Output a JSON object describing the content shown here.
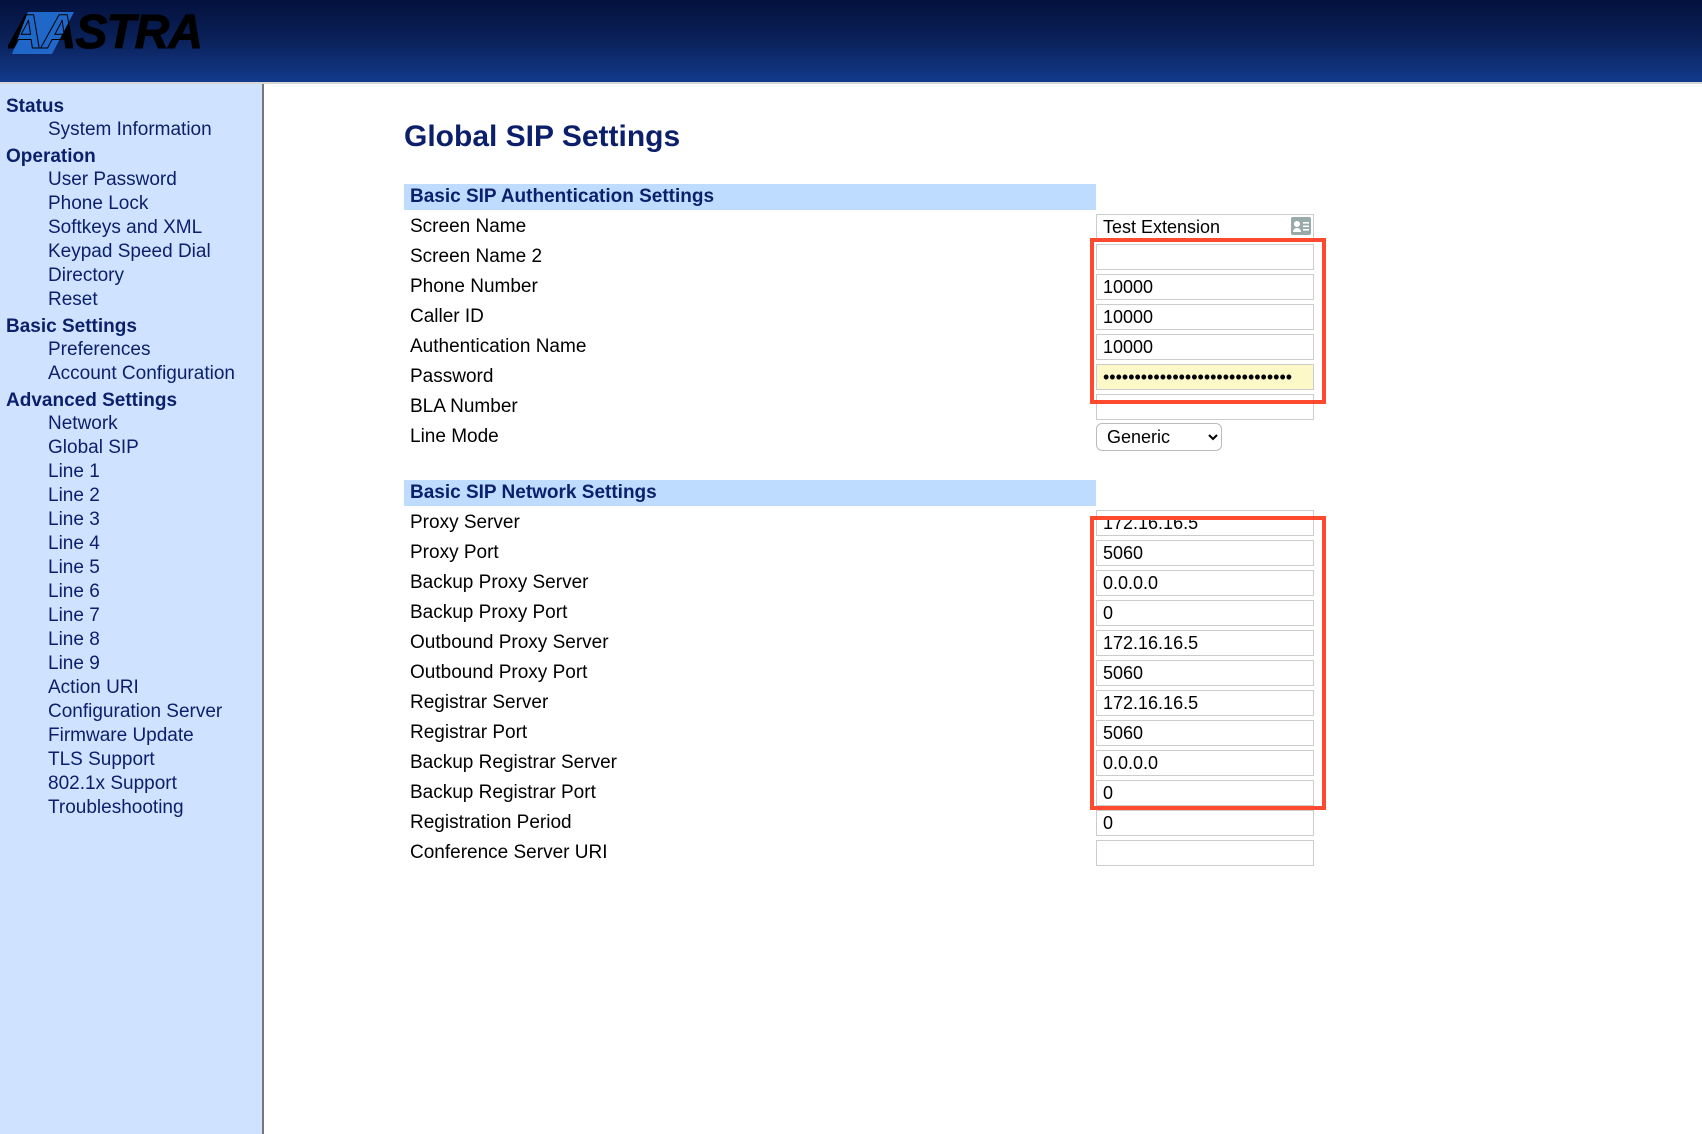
{
  "brand": "AASTRA",
  "colors": {
    "accent": "#0b1f6b",
    "sidebar_bg": "#cfe2ff",
    "section_bg": "#bedcff",
    "highlight": "#ff4a2f",
    "password_bg": "#fcf8c7"
  },
  "sidebar": {
    "sections": [
      {
        "title": "Status",
        "items": [
          "System Information"
        ]
      },
      {
        "title": "Operation",
        "items": [
          "User Password",
          "Phone Lock",
          "Softkeys and XML",
          "Keypad Speed Dial",
          "Directory",
          "Reset"
        ]
      },
      {
        "title": "Basic Settings",
        "items": [
          "Preferences",
          "Account Configuration"
        ]
      },
      {
        "title": "Advanced Settings",
        "items": [
          "Network",
          "Global SIP",
          "Line 1",
          "Line 2",
          "Line 3",
          "Line 4",
          "Line 5",
          "Line 6",
          "Line 7",
          "Line 8",
          "Line 9",
          "Action URI",
          "Configuration Server",
          "Firmware Update",
          "TLS Support",
          "802.1x Support",
          "Troubleshooting"
        ]
      }
    ]
  },
  "page": {
    "title": "Global SIP Settings",
    "groups": [
      {
        "header": "Basic SIP Authentication Settings",
        "rows": [
          {
            "label": "Screen Name",
            "value": "Test Extension",
            "type": "text",
            "has_contact_icon": true
          },
          {
            "label": "Screen Name 2",
            "value": "",
            "type": "text"
          },
          {
            "label": "Phone Number",
            "value": "10000",
            "type": "text"
          },
          {
            "label": "Caller ID",
            "value": "10000",
            "type": "text"
          },
          {
            "label": "Authentication Name",
            "value": "10000",
            "type": "text"
          },
          {
            "label": "Password",
            "value": "••••••••••••••••••••••••••••••",
            "type": "password"
          },
          {
            "label": "BLA Number",
            "value": "",
            "type": "text"
          },
          {
            "label": "Line Mode",
            "value": "Generic",
            "type": "select"
          }
        ],
        "highlight": {
          "from_row": 1,
          "to_row": 5
        }
      },
      {
        "header": "Basic SIP Network Settings",
        "rows": [
          {
            "label": "Proxy Server",
            "value": "172.16.16.5",
            "type": "text"
          },
          {
            "label": "Proxy Port",
            "value": "5060",
            "type": "text"
          },
          {
            "label": "Backup Proxy Server",
            "value": "0.0.0.0",
            "type": "text"
          },
          {
            "label": "Backup Proxy Port",
            "value": "0",
            "type": "text"
          },
          {
            "label": "Outbound Proxy Server",
            "value": "172.16.16.5",
            "type": "text"
          },
          {
            "label": "Outbound Proxy Port",
            "value": "5060",
            "type": "text"
          },
          {
            "label": "Registrar Server",
            "value": "172.16.16.5",
            "type": "text"
          },
          {
            "label": "Registrar Port",
            "value": "5060",
            "type": "text"
          },
          {
            "label": "Backup Registrar Server",
            "value": "0.0.0.0",
            "type": "text"
          },
          {
            "label": "Backup Registrar Port",
            "value": "0",
            "type": "text"
          },
          {
            "label": "Registration Period",
            "value": "0",
            "type": "text"
          },
          {
            "label": "Conference Server URI",
            "value": "",
            "type": "text"
          }
        ],
        "highlight": {
          "from_row": 0,
          "to_row": 8
        }
      }
    ]
  }
}
